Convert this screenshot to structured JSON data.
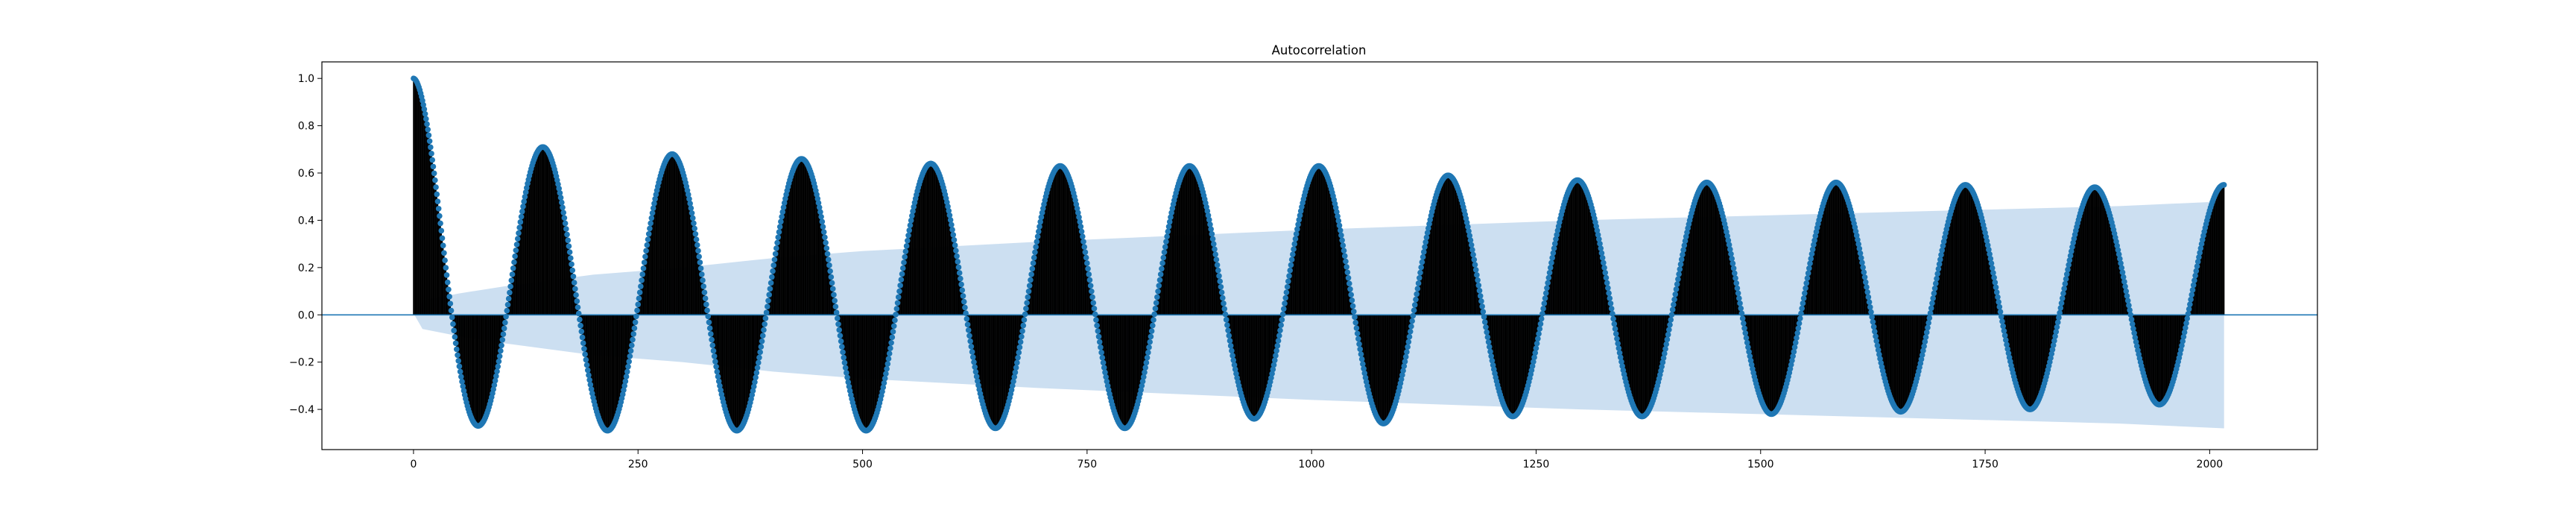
{
  "chart_data": {
    "type": "stem",
    "title": "Autocorrelation",
    "xlabel": "",
    "ylabel": "",
    "xlim": [
      -102,
      2120
    ],
    "ylim": [
      -0.57,
      1.07
    ],
    "xticks": [
      0,
      250,
      500,
      750,
      1000,
      1250,
      1500,
      1750,
      2000
    ],
    "xtick_labels": [
      "0",
      "250",
      "500",
      "750",
      "1000",
      "1250",
      "1500",
      "1750",
      "2000"
    ],
    "yticks": [
      -0.4,
      -0.2,
      0.0,
      0.2,
      0.4,
      0.6,
      0.8,
      1.0
    ],
    "ytick_labels": [
      "−0.4",
      "−0.2",
      "0.0",
      "0.2",
      "0.4",
      "0.6",
      "0.8",
      "1.0"
    ],
    "grid": false,
    "nlags": 2016,
    "acf_peaks": [
      {
        "lag": 0,
        "value": 1.0
      },
      {
        "lag": 144,
        "value": 0.71
      },
      {
        "lag": 288,
        "value": 0.68
      },
      {
        "lag": 432,
        "value": 0.66
      },
      {
        "lag": 576,
        "value": 0.64
      },
      {
        "lag": 720,
        "value": 0.63
      },
      {
        "lag": 864,
        "value": 0.63
      },
      {
        "lag": 1008,
        "value": 0.63
      },
      {
        "lag": 1152,
        "value": 0.59
      },
      {
        "lag": 1296,
        "value": 0.57
      },
      {
        "lag": 1440,
        "value": 0.56
      },
      {
        "lag": 1584,
        "value": 0.56
      },
      {
        "lag": 1728,
        "value": 0.55
      },
      {
        "lag": 1872,
        "value": 0.54
      },
      {
        "lag": 2016,
        "value": 0.55
      }
    ],
    "acf_troughs": [
      {
        "lag": 72,
        "value": -0.47
      },
      {
        "lag": 216,
        "value": -0.49
      },
      {
        "lag": 360,
        "value": -0.49
      },
      {
        "lag": 504,
        "value": -0.49
      },
      {
        "lag": 648,
        "value": -0.48
      },
      {
        "lag": 792,
        "value": -0.48
      },
      {
        "lag": 936,
        "value": -0.44
      },
      {
        "lag": 1080,
        "value": -0.46
      },
      {
        "lag": 1224,
        "value": -0.43
      },
      {
        "lag": 1368,
        "value": -0.43
      },
      {
        "lag": 1512,
        "value": -0.42
      },
      {
        "lag": 1656,
        "value": -0.41
      },
      {
        "lag": 1800,
        "value": -0.4
      },
      {
        "lag": 1944,
        "value": -0.38
      }
    ],
    "confidence_band": [
      {
        "lag": 1,
        "value": 0.0
      },
      {
        "lag": 10,
        "value": 0.06
      },
      {
        "lag": 50,
        "value": 0.09
      },
      {
        "lag": 100,
        "value": 0.12
      },
      {
        "lag": 200,
        "value": 0.17
      },
      {
        "lag": 300,
        "value": 0.2
      },
      {
        "lag": 400,
        "value": 0.24
      },
      {
        "lag": 500,
        "value": 0.27
      },
      {
        "lag": 700,
        "value": 0.31
      },
      {
        "lag": 1000,
        "value": 0.36
      },
      {
        "lag": 1300,
        "value": 0.4
      },
      {
        "lag": 1600,
        "value": 0.43
      },
      {
        "lag": 1900,
        "value": 0.46
      },
      {
        "lag": 2016,
        "value": 0.48
      }
    ],
    "colors": {
      "stem": "#000000",
      "marker": "#1f77b4",
      "zero_line": "#1f77b4",
      "band": "#c6dbef"
    }
  }
}
